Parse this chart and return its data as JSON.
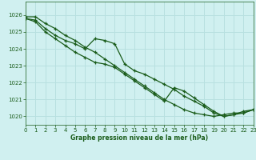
{
  "title": "Graphe pression niveau de la mer (hPa)",
  "background_color": "#d0f0f0",
  "grid_color": "#b8e0e0",
  "line_color": "#1a5c1a",
  "xlim": [
    0,
    23
  ],
  "ylim": [
    1019.5,
    1026.8
  ],
  "yticks": [
    1020,
    1021,
    1022,
    1023,
    1024,
    1025,
    1026
  ],
  "xticks": [
    0,
    1,
    2,
    3,
    4,
    5,
    6,
    7,
    8,
    9,
    10,
    11,
    12,
    13,
    14,
    15,
    16,
    17,
    18,
    19,
    20,
    21,
    22,
    23
  ],
  "series": [
    [
      1025.9,
      1025.9,
      1025.5,
      1025.2,
      1024.8,
      1024.5,
      1024.1,
      1023.8,
      1023.4,
      1023.0,
      1022.6,
      1022.2,
      1021.8,
      1021.4,
      1021.0,
      1020.7,
      1020.4,
      1020.2,
      1020.1,
      1020.0,
      1020.1,
      1020.2,
      1020.2,
      1020.4
    ],
    [
      1025.8,
      1025.7,
      1025.2,
      1024.8,
      1024.5,
      1024.3,
      1024.0,
      1024.6,
      1024.5,
      1024.3,
      1023.1,
      1022.7,
      1022.5,
      1022.2,
      1021.9,
      1021.6,
      1021.2,
      1020.9,
      1020.6,
      1020.2,
      1020.0,
      1020.1,
      1020.2,
      1020.4
    ],
    [
      1025.8,
      1025.6,
      1025.0,
      1024.6,
      1024.2,
      1023.8,
      1023.5,
      1023.2,
      1023.1,
      1022.9,
      1022.5,
      1022.1,
      1021.7,
      1021.3,
      1020.9,
      1021.7,
      1021.5,
      1021.1,
      1020.7,
      1020.3,
      1020.0,
      1020.1,
      1020.3,
      1020.4
    ]
  ]
}
